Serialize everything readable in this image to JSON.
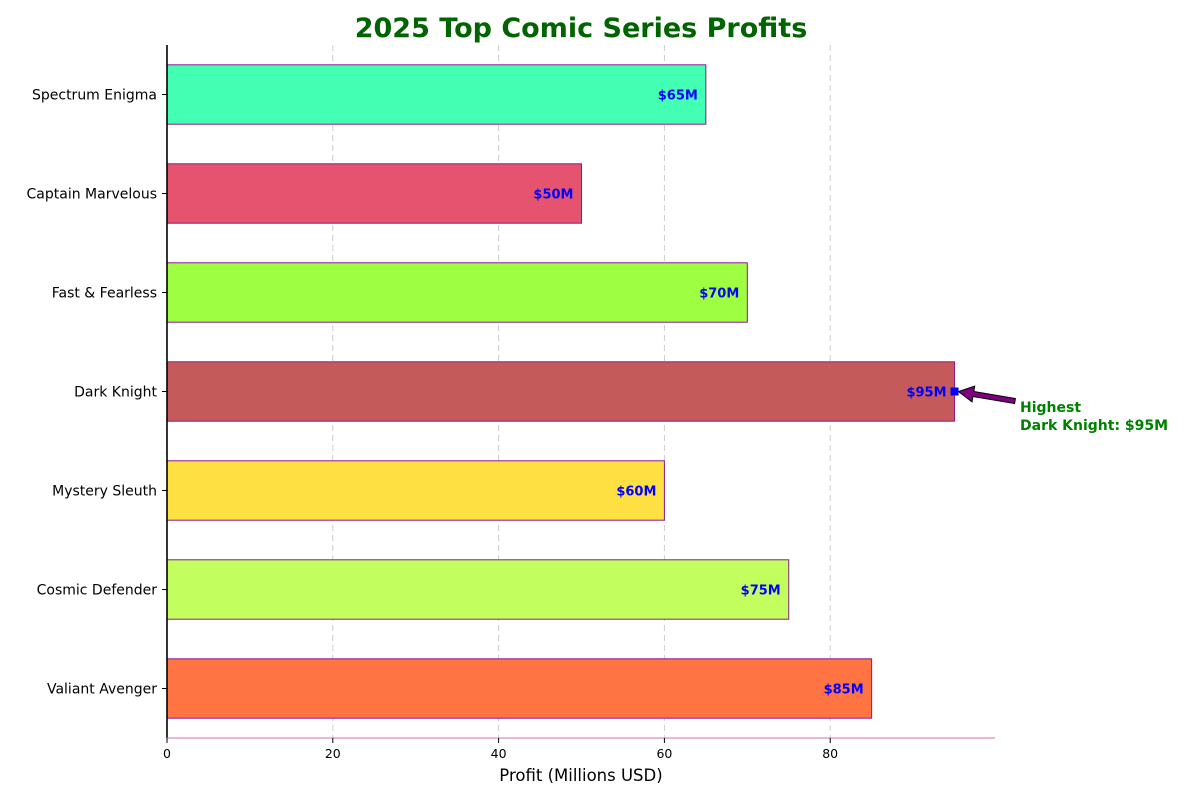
{
  "chart_data": {
    "type": "bar",
    "orientation": "horizontal",
    "title": "2025 Top Comic Series Profits",
    "xlabel": "Profit (Millions USD)",
    "ylabel": "",
    "xlim": [
      0,
      100
    ],
    "xticks": [
      0,
      20,
      40,
      60,
      80
    ],
    "grid": "vertical dashed",
    "categories": [
      "Valiant Avenger",
      "Cosmic Defender",
      "Mystery Sleuth",
      "Dark Knight",
      "Fast & Fearless",
      "Captain Marvelous",
      "Spectrum Enigma"
    ],
    "values": [
      85,
      75,
      60,
      95,
      70,
      50,
      65
    ],
    "value_labels": [
      "$85M",
      "$75M",
      "$60M",
      "$95M",
      "$70M",
      "$50M",
      "$65M"
    ],
    "colors": [
      "#ff7442",
      "#c2ff5e",
      "#ffe042",
      "#c55a5a",
      "#9eff42",
      "#e5536f",
      "#42ffb3"
    ],
    "annotation": {
      "target": "Dark Knight",
      "value": 95,
      "line1": "Highest",
      "line2": "Dark Knight: $95M"
    },
    "colors_meta": {
      "title": "#006400",
      "bar_edge": "#8b1a8b",
      "value_label": "#0000ff",
      "annotation_text": "#008000",
      "arrow_fill": "#800080",
      "marker": "#0000ff",
      "bottom_axis": "#d070b0"
    }
  }
}
